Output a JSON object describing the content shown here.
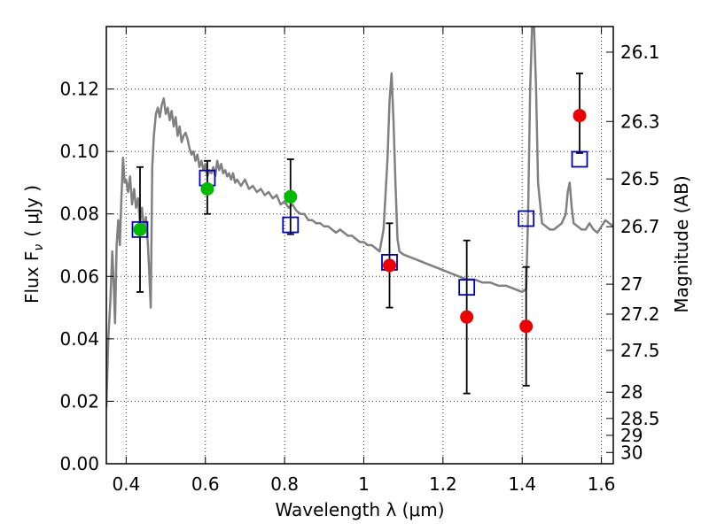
{
  "chart_data": {
    "type": "scatter",
    "xlabel": "Wavelength  λ (μm)",
    "ylabel": "Flux  F",
    "ylabel_sub": "ν",
    "ylabel_unit": "( μJy )",
    "y2label": "Magnitude (AB)",
    "xlim": [
      0.35,
      1.63
    ],
    "ylim": [
      0.0,
      0.14
    ],
    "grid": true,
    "x_ticks": [
      {
        "v": 0.4,
        "label": "0.4"
      },
      {
        "v": 0.6,
        "label": "0.6"
      },
      {
        "v": 0.8,
        "label": "0.8"
      },
      {
        "v": 1.0,
        "label": "1"
      },
      {
        "v": 1.2,
        "label": "1.2"
      },
      {
        "v": 1.4,
        "label": "1.4"
      },
      {
        "v": 1.6,
        "label": "1.6"
      }
    ],
    "y_ticks": [
      {
        "v": 0.0,
        "label": "0.00"
      },
      {
        "v": 0.02,
        "label": "0.02"
      },
      {
        "v": 0.04,
        "label": "0.04"
      },
      {
        "v": 0.06,
        "label": "0.06"
      },
      {
        "v": 0.08,
        "label": "0.08"
      },
      {
        "v": 0.1,
        "label": "0.10"
      },
      {
        "v": 0.12,
        "label": "0.12"
      }
    ],
    "mag_ticks": [
      {
        "label": "26.1",
        "flux": 0.1318
      },
      {
        "label": "26.3",
        "flux": 0.1096
      },
      {
        "label": "26.5",
        "flux": 0.0912
      },
      {
        "label": "26.7",
        "flux": 0.0759
      },
      {
        "label": "27",
        "flux": 0.0575
      },
      {
        "label": "27.2",
        "flux": 0.0479
      },
      {
        "label": "27.5",
        "flux": 0.0363
      },
      {
        "label": "28",
        "flux": 0.0229
      },
      {
        "label": "28.5",
        "flux": 0.0145
      },
      {
        "label": "29",
        "flux": 0.0091
      },
      {
        "label": "30",
        "flux": 0.0036
      }
    ],
    "colors": {
      "model": "#808080",
      "optical": "#00bb00",
      "nir": "#ee0000",
      "synthetic": "#0000bb",
      "errorbar": "#000000"
    },
    "model_spectrum": [
      [
        0.35,
        0.018
      ],
      [
        0.355,
        0.04
      ],
      [
        0.36,
        0.052
      ],
      [
        0.365,
        0.068
      ],
      [
        0.368,
        0.06
      ],
      [
        0.372,
        0.045
      ],
      [
        0.376,
        0.07
      ],
      [
        0.38,
        0.078
      ],
      [
        0.384,
        0.07
      ],
      [
        0.388,
        0.085
      ],
      [
        0.392,
        0.098
      ],
      [
        0.396,
        0.09
      ],
      [
        0.4,
        0.091
      ],
      [
        0.405,
        0.087
      ],
      [
        0.41,
        0.092
      ],
      [
        0.415,
        0.083
      ],
      [
        0.42,
        0.088
      ],
      [
        0.425,
        0.082
      ],
      [
        0.43,
        0.085
      ],
      [
        0.435,
        0.077
      ],
      [
        0.44,
        0.082
      ],
      [
        0.445,
        0.075
      ],
      [
        0.45,
        0.079
      ],
      [
        0.455,
        0.07
      ],
      [
        0.458,
        0.062
      ],
      [
        0.462,
        0.05
      ],
      [
        0.466,
        0.095
      ],
      [
        0.47,
        0.105
      ],
      [
        0.475,
        0.112
      ],
      [
        0.48,
        0.114
      ],
      [
        0.485,
        0.111
      ],
      [
        0.49,
        0.115
      ],
      [
        0.495,
        0.117
      ],
      [
        0.5,
        0.112
      ],
      [
        0.505,
        0.114
      ],
      [
        0.51,
        0.11
      ],
      [
        0.515,
        0.113
      ],
      [
        0.52,
        0.108
      ],
      [
        0.525,
        0.111
      ],
      [
        0.53,
        0.105
      ],
      [
        0.535,
        0.108
      ],
      [
        0.54,
        0.103
      ],
      [
        0.545,
        0.105
      ],
      [
        0.55,
        0.106
      ],
      [
        0.555,
        0.104
      ],
      [
        0.56,
        0.101
      ],
      [
        0.565,
        0.099
      ],
      [
        0.57,
        0.1
      ],
      [
        0.575,
        0.097
      ],
      [
        0.58,
        0.099
      ],
      [
        0.585,
        0.095
      ],
      [
        0.59,
        0.097
      ],
      [
        0.595,
        0.094
      ],
      [
        0.6,
        0.096
      ],
      [
        0.605,
        0.092
      ],
      [
        0.61,
        0.094
      ],
      [
        0.615,
        0.093
      ],
      [
        0.62,
        0.095
      ],
      [
        0.625,
        0.092
      ],
      [
        0.63,
        0.097
      ],
      [
        0.635,
        0.094
      ],
      [
        0.64,
        0.096
      ],
      [
        0.645,
        0.093
      ],
      [
        0.65,
        0.094
      ],
      [
        0.655,
        0.092
      ],
      [
        0.66,
        0.093
      ],
      [
        0.665,
        0.091
      ],
      [
        0.67,
        0.093
      ],
      [
        0.675,
        0.09
      ],
      [
        0.68,
        0.091
      ],
      [
        0.69,
        0.089
      ],
      [
        0.7,
        0.091
      ],
      [
        0.71,
        0.088
      ],
      [
        0.72,
        0.089
      ],
      [
        0.73,
        0.087
      ],
      [
        0.74,
        0.088
      ],
      [
        0.75,
        0.086
      ],
      [
        0.76,
        0.087
      ],
      [
        0.77,
        0.085
      ],
      [
        0.78,
        0.086
      ],
      [
        0.79,
        0.083
      ],
      [
        0.8,
        0.084
      ],
      [
        0.81,
        0.082
      ],
      [
        0.82,
        0.083
      ],
      [
        0.83,
        0.081
      ],
      [
        0.84,
        0.08
      ],
      [
        0.85,
        0.08
      ],
      [
        0.86,
        0.078
      ],
      [
        0.87,
        0.078
      ],
      [
        0.88,
        0.077
      ],
      [
        0.89,
        0.077
      ],
      [
        0.9,
        0.076
      ],
      [
        0.91,
        0.076
      ],
      [
        0.92,
        0.075
      ],
      [
        0.93,
        0.074
      ],
      [
        0.94,
        0.075
      ],
      [
        0.95,
        0.074
      ],
      [
        0.96,
        0.073
      ],
      [
        0.97,
        0.073
      ],
      [
        0.98,
        0.072
      ],
      [
        0.99,
        0.071
      ],
      [
        1.0,
        0.071
      ],
      [
        1.01,
        0.07
      ],
      [
        1.02,
        0.07
      ],
      [
        1.03,
        0.069
      ],
      [
        1.04,
        0.068
      ],
      [
        1.05,
        0.075
      ],
      [
        1.06,
        0.098
      ],
      [
        1.065,
        0.116
      ],
      [
        1.07,
        0.125
      ],
      [
        1.075,
        0.11
      ],
      [
        1.08,
        0.09
      ],
      [
        1.085,
        0.072
      ],
      [
        1.09,
        0.068
      ],
      [
        1.1,
        0.067
      ],
      [
        1.12,
        0.066
      ],
      [
        1.14,
        0.065
      ],
      [
        1.16,
        0.064
      ],
      [
        1.18,
        0.063
      ],
      [
        1.2,
        0.062
      ],
      [
        1.22,
        0.061
      ],
      [
        1.24,
        0.06
      ],
      [
        1.26,
        0.059
      ],
      [
        1.28,
        0.059
      ],
      [
        1.3,
        0.058
      ],
      [
        1.32,
        0.058
      ],
      [
        1.34,
        0.057
      ],
      [
        1.36,
        0.057
      ],
      [
        1.38,
        0.056
      ],
      [
        1.4,
        0.055
      ],
      [
        1.41,
        0.056
      ],
      [
        1.415,
        0.08
      ],
      [
        1.42,
        0.12
      ],
      [
        1.425,
        0.14
      ],
      [
        1.43,
        0.14
      ],
      [
        1.435,
        0.12
      ],
      [
        1.44,
        0.09
      ],
      [
        1.45,
        0.077
      ],
      [
        1.46,
        0.076
      ],
      [
        1.47,
        0.075
      ],
      [
        1.48,
        0.075
      ],
      [
        1.49,
        0.076
      ],
      [
        1.5,
        0.077
      ],
      [
        1.51,
        0.08
      ],
      [
        1.515,
        0.087
      ],
      [
        1.52,
        0.09
      ],
      [
        1.525,
        0.082
      ],
      [
        1.53,
        0.077
      ],
      [
        1.54,
        0.076
      ],
      [
        1.55,
        0.075
      ],
      [
        1.56,
        0.075
      ],
      [
        1.57,
        0.077
      ],
      [
        1.58,
        0.075
      ],
      [
        1.59,
        0.074
      ],
      [
        1.6,
        0.076
      ],
      [
        1.61,
        0.078
      ],
      [
        1.62,
        0.077
      ],
      [
        1.63,
        0.076
      ]
    ],
    "series": [
      {
        "kind": "optical",
        "points": [
          {
            "x": 0.435,
            "y": 0.075,
            "err": [
              0.055,
              0.095
            ]
          },
          {
            "x": 0.605,
            "y": 0.088,
            "err": [
              0.08,
              0.097
            ]
          },
          {
            "x": 0.815,
            "y": 0.0855,
            "err": [
              0.0735,
              0.0975
            ]
          }
        ]
      },
      {
        "kind": "nir",
        "points": [
          {
            "x": 1.065,
            "y": 0.0635,
            "err": [
              0.05,
              0.077
            ]
          },
          {
            "x": 1.26,
            "y": 0.047,
            "err": [
              0.0225,
              0.0715
            ]
          },
          {
            "x": 1.41,
            "y": 0.044,
            "err": [
              0.025,
              0.063
            ]
          },
          {
            "x": 1.545,
            "y": 0.1115,
            "err": [
              0.0995,
              0.125
            ]
          }
        ]
      },
      {
        "kind": "synthetic",
        "points": [
          {
            "x": 0.435,
            "y": 0.075
          },
          {
            "x": 0.605,
            "y": 0.0915
          },
          {
            "x": 0.815,
            "y": 0.0765
          },
          {
            "x": 1.065,
            "y": 0.0645
          },
          {
            "x": 1.26,
            "y": 0.0565
          },
          {
            "x": 1.41,
            "y": 0.0785
          },
          {
            "x": 1.545,
            "y": 0.0975
          }
        ]
      }
    ]
  }
}
